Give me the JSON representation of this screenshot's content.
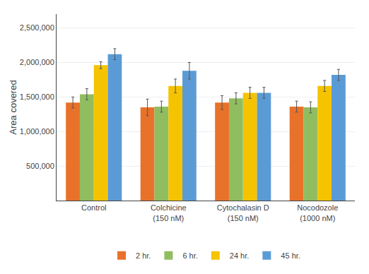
{
  "chart_data": {
    "type": "bar",
    "categories": [
      "Control",
      "Colchicine\n(150 nM)",
      "Cytochalasin D\n(150 nM)",
      "Nocodozole\n(1000 nM)"
    ],
    "series": [
      {
        "name": "2 hr.",
        "color": "#E8722A",
        "values": [
          1420000,
          1350000,
          1420000,
          1360000
        ],
        "errors": [
          80000,
          120000,
          100000,
          80000
        ]
      },
      {
        "name": "6 hr.",
        "color": "#91BD61",
        "values": [
          1540000,
          1360000,
          1480000,
          1350000
        ],
        "errors": [
          80000,
          80000,
          80000,
          80000
        ]
      },
      {
        "name": "24 hr.",
        "color": "#F5C300",
        "values": [
          1960000,
          1660000,
          1560000,
          1660000
        ],
        "errors": [
          50000,
          100000,
          80000,
          80000
        ]
      },
      {
        "name": "45 hr.",
        "color": "#5B9BD5",
        "values": [
          2120000,
          1880000,
          1560000,
          1820000
        ],
        "errors": [
          80000,
          120000,
          80000,
          80000
        ]
      }
    ],
    "ylabel": "Area covered",
    "ylim": [
      0,
      2700000
    ],
    "yticks": [
      {
        "value": 500000,
        "label": "500,000"
      },
      {
        "value": 1000000,
        "label": "1,000,000"
      },
      {
        "value": 1500000,
        "label": "1,500,000"
      },
      {
        "value": 2000000,
        "label": "2,000,000"
      },
      {
        "value": 2500000,
        "label": "2,500,000"
      }
    ],
    "grid": true,
    "legend": "bottom"
  }
}
